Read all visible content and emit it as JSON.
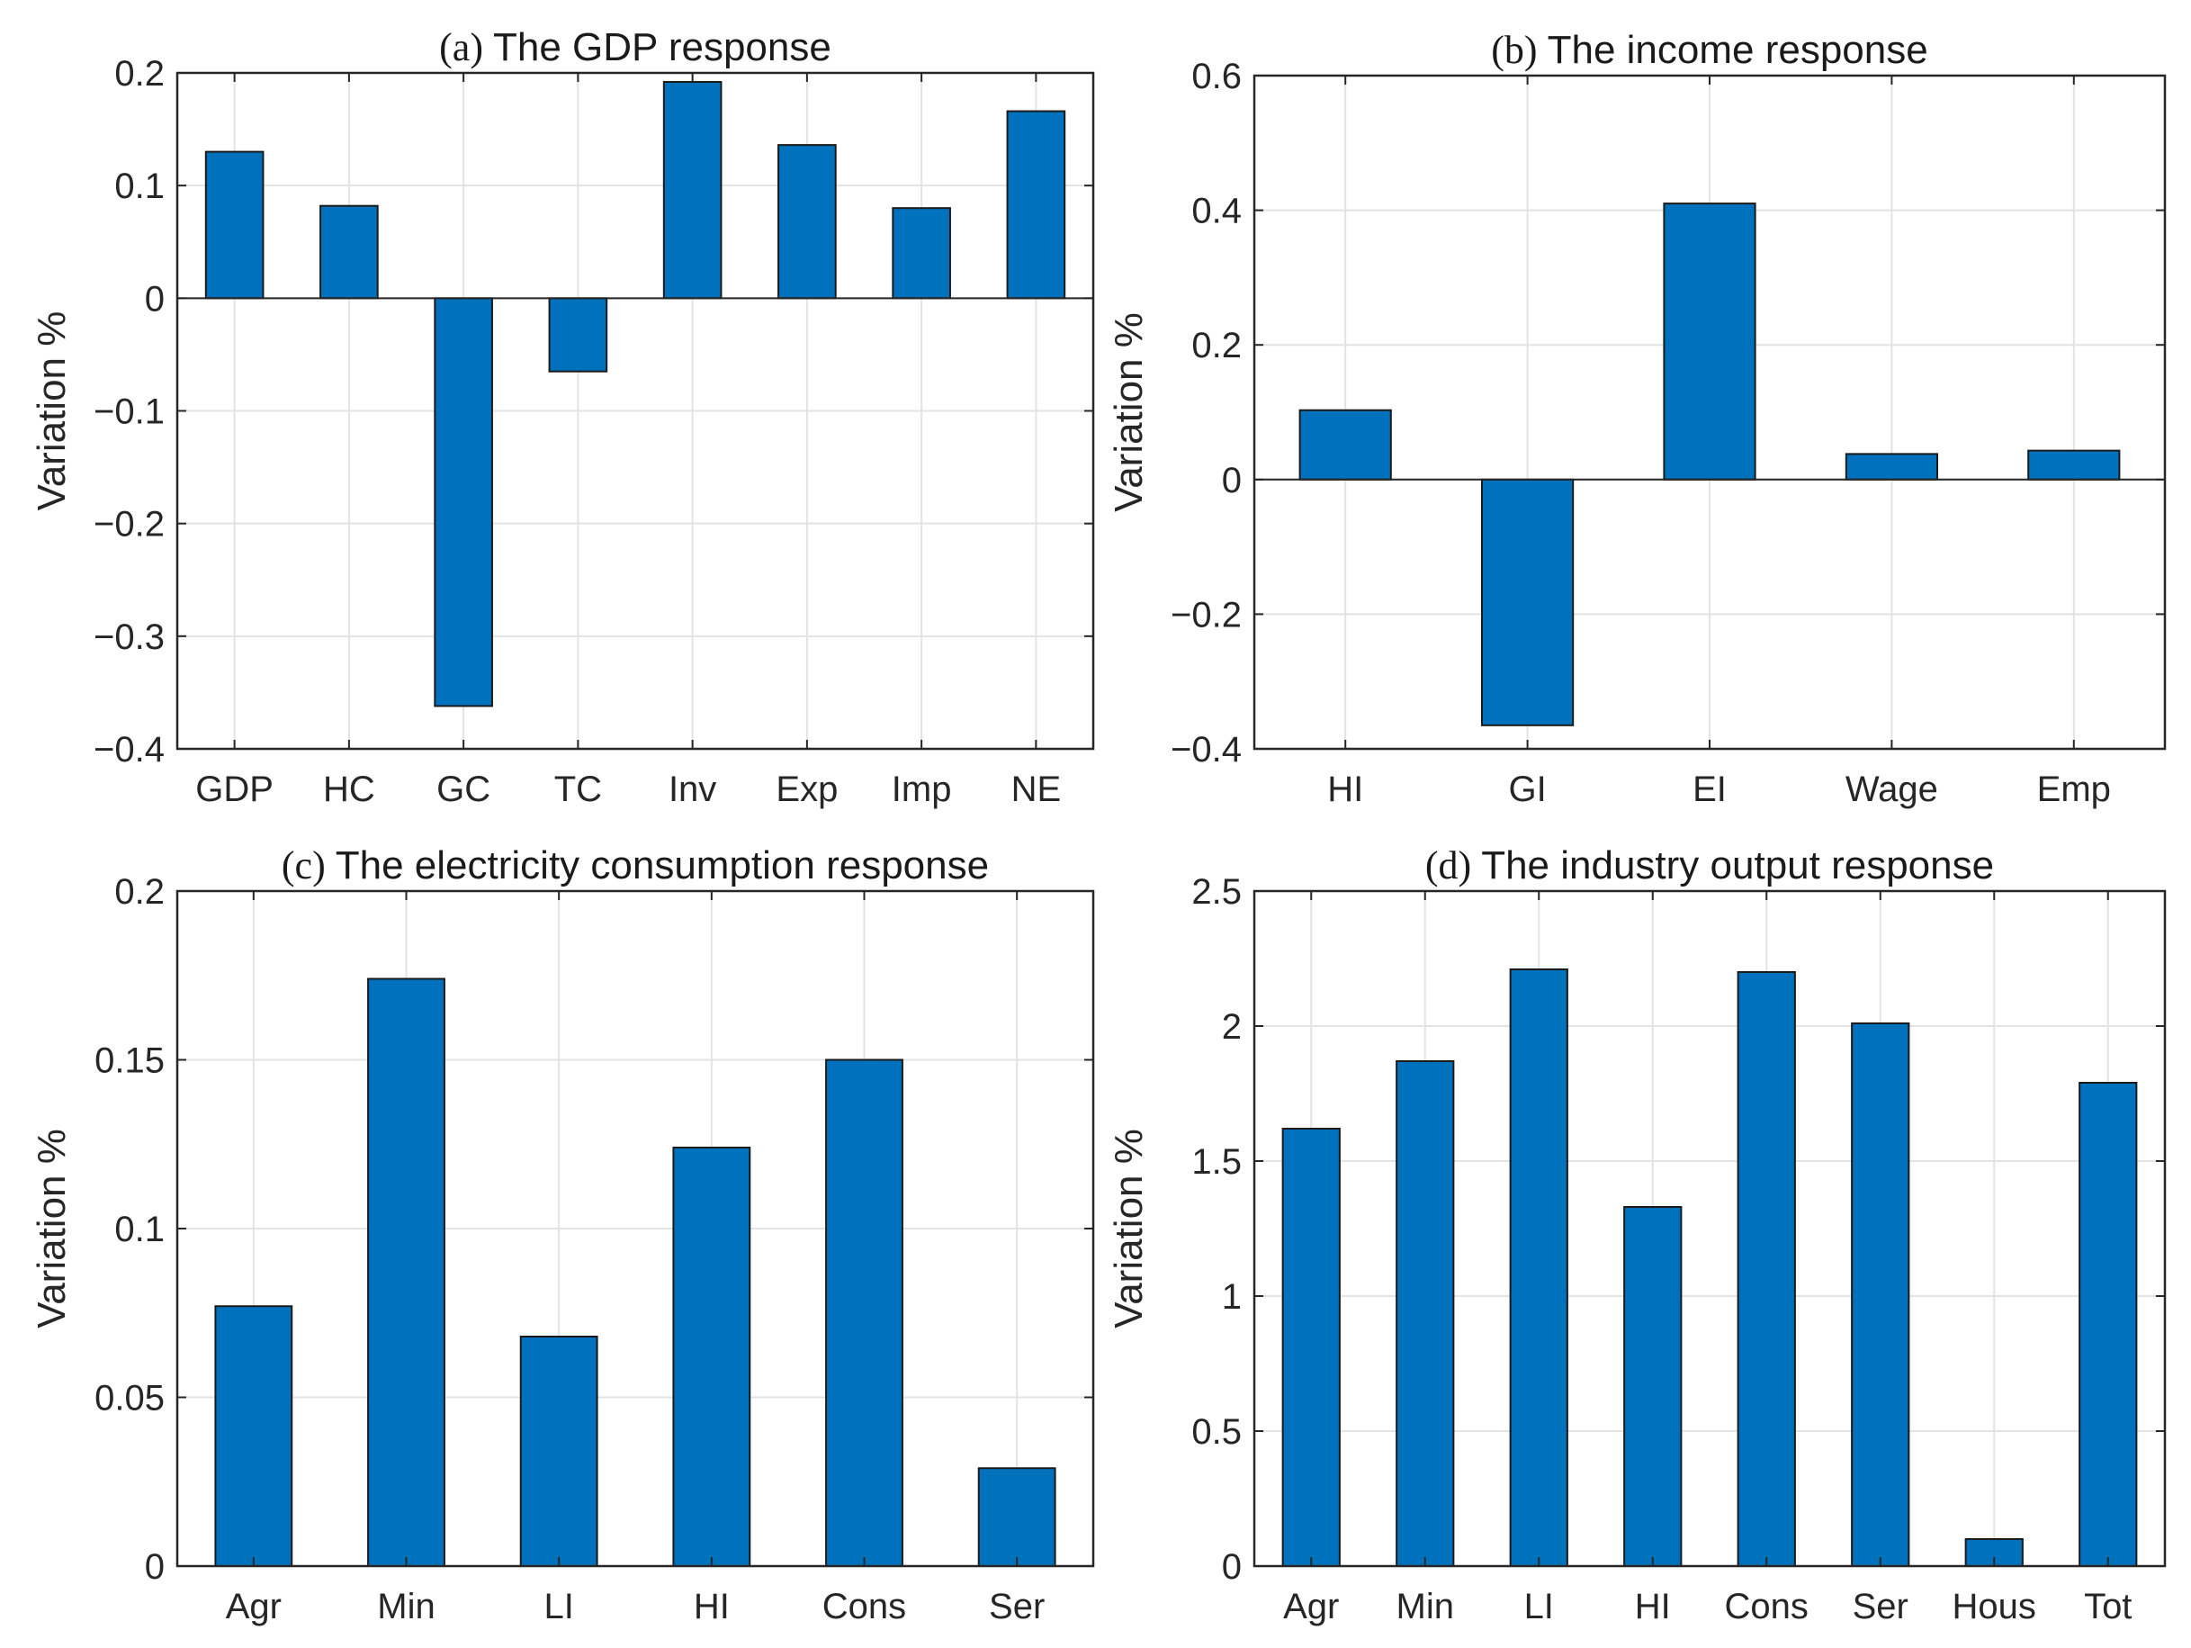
{
  "chart_data": [
    {
      "type": "bar",
      "title_prefix": "(a)",
      "title": "The GDP response",
      "xlabel": "",
      "ylabel": "Variation %",
      "categories": [
        "GDP",
        "HC",
        "GC",
        "TC",
        "Inv",
        "Exp",
        "Imp",
        "NE"
      ],
      "values": [
        0.13,
        0.082,
        -0.362,
        -0.065,
        0.192,
        0.136,
        0.08,
        0.166
      ],
      "ylim": [
        -0.4,
        0.2
      ],
      "yticks": [
        -0.4,
        -0.3,
        -0.2,
        -0.1,
        0,
        0.1,
        0.2
      ],
      "ytick_labels": [
        "−0.4",
        "−0.3",
        "−0.2",
        "−0.1",
        "0",
        "0.1",
        "0.2"
      ],
      "grid": true,
      "bar_color": "#0072BD"
    },
    {
      "type": "bar",
      "title_prefix": "(b)",
      "title": "The income response",
      "xlabel": "",
      "ylabel": "Variation %",
      "categories": [
        "HI",
        "GI",
        "EI",
        "Wage",
        "Emp"
      ],
      "values": [
        0.103,
        -0.365,
        0.41,
        0.038,
        0.043
      ],
      "ylim": [
        -0.4,
        0.6
      ],
      "yticks": [
        -0.4,
        -0.2,
        0,
        0.2,
        0.4,
        0.6
      ],
      "ytick_labels": [
        "−0.4",
        "−0.2",
        "0",
        "0.2",
        "0.4",
        "0.6"
      ],
      "grid": true,
      "bar_color": "#0072BD"
    },
    {
      "type": "bar",
      "title_prefix": "(c)",
      "title": "The electricity consumption response",
      "xlabel": "",
      "ylabel": "Variation %",
      "categories": [
        "Agr",
        "Min",
        "LI",
        "HI",
        "Cons",
        "Ser"
      ],
      "values": [
        0.077,
        0.174,
        0.068,
        0.124,
        0.15,
        0.029
      ],
      "ylim": [
        0,
        0.2
      ],
      "yticks": [
        0,
        0.05,
        0.1,
        0.15,
        0.2
      ],
      "ytick_labels": [
        "0",
        "0.05",
        "0.1",
        "0.15",
        "0.2"
      ],
      "grid": true,
      "bar_color": "#0072BD"
    },
    {
      "type": "bar",
      "title_prefix": "(d)",
      "title": "The industry output response",
      "xlabel": "",
      "ylabel": "Variation %",
      "categories": [
        "Agr",
        "Min",
        "LI",
        "HI",
        "Cons",
        "Ser",
        "Hous",
        "Tot"
      ],
      "values": [
        1.62,
        1.87,
        2.21,
        1.33,
        2.2,
        2.01,
        0.1,
        1.79
      ],
      "ylim": [
        0,
        2.5
      ],
      "yticks": [
        0,
        0.5,
        1,
        1.5,
        2,
        2.5
      ],
      "ytick_labels": [
        "0",
        "0.5",
        "1",
        "1.5",
        "2",
        "2.5"
      ],
      "grid": true,
      "bar_color": "#0072BD"
    }
  ]
}
